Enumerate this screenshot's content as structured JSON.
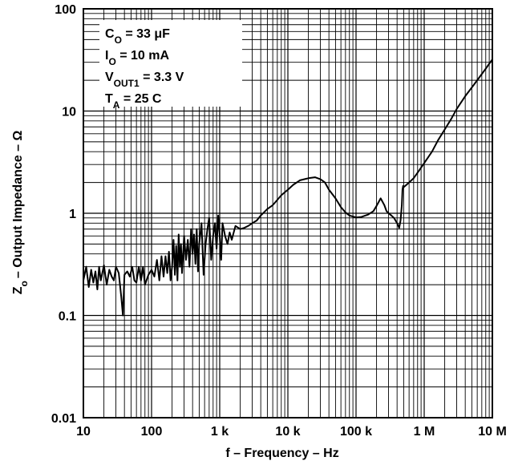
{
  "chart_data": {
    "type": "line",
    "xlabel": "f – Frequency – Hz",
    "ylabel": {
      "main": "Z",
      "sub": "o",
      "rest": "– Output Impedance – Ω"
    },
    "x_scale": "log",
    "y_scale": "log",
    "xlim": [
      10,
      10000000
    ],
    "ylim": [
      0.01,
      100
    ],
    "grid": true,
    "x_ticks": [
      {
        "value": 10,
        "label": "10"
      },
      {
        "value": 100,
        "label": "100"
      },
      {
        "value": 1000,
        "label": "1 k"
      },
      {
        "value": 10000,
        "label": "10 k"
      },
      {
        "value": 100000,
        "label": "100 k"
      },
      {
        "value": 1000000,
        "label": "1 M"
      },
      {
        "value": 10000000,
        "label": "10 M"
      }
    ],
    "y_ticks": [
      {
        "value": 0.01,
        "label": "0.01"
      },
      {
        "value": 0.1,
        "label": "0.1"
      },
      {
        "value": 1,
        "label": "1"
      },
      {
        "value": 10,
        "label": "10"
      },
      {
        "value": 100,
        "label": "100"
      }
    ],
    "conditions": [
      {
        "main": "C",
        "sub": "O",
        "rest": " = 33 μF"
      },
      {
        "main": "I",
        "sub": "O",
        "rest": " = 10 mA"
      },
      {
        "main": "V",
        "sub": "OUT1",
        "rest": " = 3.3 V"
      },
      {
        "main": "T",
        "sub": "A",
        "rest": " = 25 C"
      }
    ],
    "series": [
      {
        "color": "#000000",
        "x": [
          10,
          11,
          12,
          13,
          14,
          15,
          16,
          17,
          18,
          20,
          22,
          24,
          26,
          28,
          30,
          33,
          36,
          38,
          40,
          44,
          48,
          52,
          56,
          60,
          65,
          70,
          75,
          80,
          90,
          100,
          110,
          120,
          130,
          140,
          150,
          160,
          170,
          180,
          190,
          200,
          210,
          220,
          230,
          240,
          250,
          260,
          270,
          280,
          300,
          320,
          340,
          360,
          380,
          400,
          420,
          440,
          460,
          480,
          500,
          540,
          580,
          620,
          660,
          700,
          750,
          800,
          850,
          900,
          950,
          1000,
          1050,
          1100,
          1200,
          1300,
          1400,
          1500,
          1700,
          2000,
          2300,
          2600,
          3000,
          3500,
          4000,
          5000,
          6000,
          7000,
          8000,
          10000,
          12000,
          15000,
          20000,
          25000,
          30000,
          35000,
          40000,
          50000,
          60000,
          70000,
          80000,
          100000,
          120000,
          150000,
          180000,
          200000,
          230000,
          260000,
          280000,
          300000,
          330000,
          360000,
          400000,
          430000,
          450000,
          470000,
          480000,
          490000,
          500000,
          550000,
          600000,
          700000,
          800000,
          1000000,
          1300000,
          1600000,
          2000000,
          2500000,
          3000000,
          4000000,
          5000000,
          6000000,
          7000000,
          8000000,
          9000000,
          10000000
        ],
        "y": [
          0.22,
          0.3,
          0.19,
          0.28,
          0.21,
          0.27,
          0.18,
          0.3,
          0.22,
          0.31,
          0.2,
          0.28,
          0.24,
          0.22,
          0.3,
          0.26,
          0.15,
          0.1,
          0.25,
          0.27,
          0.24,
          0.3,
          0.22,
          0.21,
          0.3,
          0.22,
          0.3,
          0.2,
          0.25,
          0.28,
          0.24,
          0.35,
          0.22,
          0.38,
          0.24,
          0.38,
          0.26,
          0.42,
          0.22,
          0.3,
          0.55,
          0.25,
          0.48,
          0.22,
          0.62,
          0.3,
          0.5,
          0.26,
          0.6,
          0.35,
          0.55,
          0.3,
          0.7,
          0.4,
          0.62,
          0.32,
          0.7,
          0.27,
          0.5,
          0.8,
          0.25,
          0.5,
          0.7,
          0.9,
          0.35,
          0.6,
          0.8,
          0.45,
          0.95,
          0.6,
          0.35,
          0.8,
          0.6,
          0.5,
          0.65,
          0.55,
          0.75,
          0.7,
          0.72,
          0.75,
          0.8,
          0.85,
          0.95,
          1.1,
          1.2,
          1.35,
          1.5,
          1.7,
          1.9,
          2.1,
          2.2,
          2.25,
          2.15,
          2.0,
          1.7,
          1.4,
          1.15,
          1.02,
          0.95,
          0.91,
          0.92,
          0.97,
          1.05,
          1.18,
          1.4,
          1.2,
          1.05,
          1.0,
          0.95,
          0.9,
          0.8,
          0.72,
          0.85,
          1.2,
          1.7,
          1.85,
          1.8,
          1.9,
          2.0,
          2.2,
          2.5,
          3.1,
          4.0,
          5.2,
          6.6,
          8.4,
          10.5,
          14,
          17,
          20,
          23,
          26,
          29,
          32
        ]
      }
    ]
  }
}
